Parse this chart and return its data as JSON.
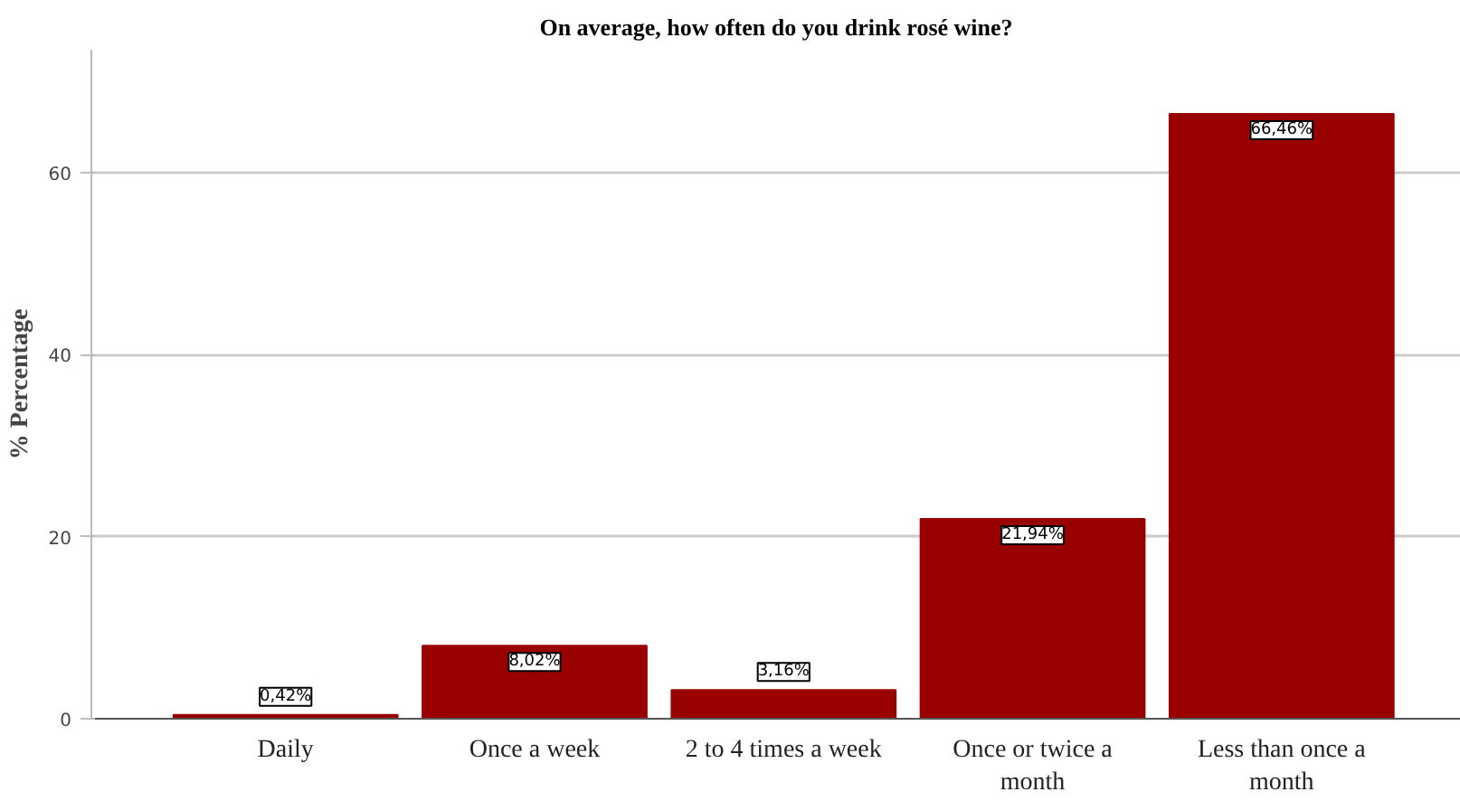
{
  "chart_data": {
    "type": "bar",
    "title": "On average, how often do you drink rosé wine?",
    "ylabel": "% Percentage",
    "categories": [
      "Daily",
      "Once a week",
      "2 to 4 times a week",
      "Once or twice a month",
      "Less than once a month"
    ],
    "values": [
      0.42,
      8.02,
      3.16,
      21.94,
      66.46
    ],
    "value_labels": [
      "0,42%",
      "8,02%",
      "3,16%",
      "21,94%",
      "66,46%"
    ],
    "color": "#990000",
    "ylim": [
      0,
      73.5
    ],
    "yticks": [
      0,
      20,
      40,
      60
    ],
    "grid": "y"
  }
}
